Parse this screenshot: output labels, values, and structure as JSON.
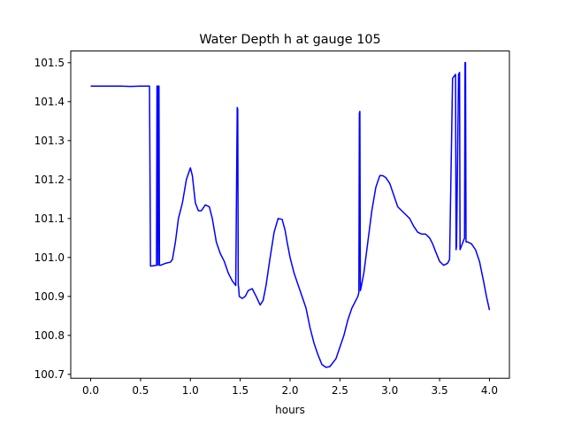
{
  "chart_data": {
    "type": "line",
    "title": "Water Depth h at gauge 105",
    "xlabel": "hours",
    "ylabel": "",
    "xlim": [
      -0.2,
      4.2
    ],
    "ylim": [
      100.69,
      101.53
    ],
    "xticks": [
      0.0,
      0.5,
      1.0,
      1.5,
      2.0,
      2.5,
      3.0,
      3.5,
      4.0
    ],
    "xtick_labels": [
      "0.0",
      "0.5",
      "1.0",
      "1.5",
      "2.0",
      "2.5",
      "3.0",
      "3.5",
      "4.0"
    ],
    "yticks": [
      100.7,
      100.8,
      100.9,
      101.0,
      101.1,
      101.2,
      101.3,
      101.4,
      101.5
    ],
    "ytick_labels": [
      "100.7",
      "100.8",
      "100.9",
      "101.0",
      "101.1",
      "101.2",
      "101.3",
      "101.4",
      "101.5"
    ],
    "grid": false,
    "series": [
      {
        "color": "#0000ff",
        "x": [
          0.0,
          0.1,
          0.2,
          0.3,
          0.4,
          0.5,
          0.59,
          0.6,
          0.605,
          0.66,
          0.665,
          0.67,
          0.675,
          0.68,
          0.685,
          0.69,
          0.7,
          0.75,
          0.8,
          0.82,
          0.85,
          0.88,
          0.92,
          0.96,
          1.0,
          1.02,
          1.05,
          1.08,
          1.11,
          1.15,
          1.19,
          1.22,
          1.26,
          1.3,
          1.34,
          1.38,
          1.42,
          1.455,
          1.47,
          1.475,
          1.48,
          1.485,
          1.49,
          1.52,
          1.55,
          1.58,
          1.62,
          1.66,
          1.7,
          1.73,
          1.76,
          1.8,
          1.84,
          1.88,
          1.92,
          1.95,
          1.97,
          2.0,
          2.04,
          2.08,
          2.12,
          2.16,
          2.2,
          2.24,
          2.28,
          2.32,
          2.36,
          2.4,
          2.43,
          2.46,
          2.5,
          2.54,
          2.58,
          2.62,
          2.66,
          2.68,
          2.69,
          2.695,
          2.7,
          2.705,
          2.71,
          2.74,
          2.78,
          2.82,
          2.86,
          2.9,
          2.93,
          2.96,
          3.0,
          3.04,
          3.08,
          3.12,
          3.16,
          3.2,
          3.24,
          3.28,
          3.32,
          3.36,
          3.4,
          3.43,
          3.46,
          3.5,
          3.54,
          3.58,
          3.6,
          3.63,
          3.66,
          3.665,
          3.67,
          3.69,
          3.7,
          3.705,
          3.72,
          3.75,
          3.755,
          3.76,
          3.765,
          3.78,
          3.82,
          3.86,
          3.9,
          3.94,
          3.97,
          4.0
        ],
        "y": [
          101.44,
          101.44,
          101.44,
          101.44,
          101.439,
          101.44,
          101.44,
          100.978,
          100.978,
          100.98,
          101.44,
          101.44,
          100.98,
          101.44,
          101.44,
          100.98,
          100.98,
          100.985,
          100.988,
          100.995,
          101.04,
          101.1,
          101.14,
          101.2,
          101.23,
          101.21,
          101.14,
          101.12,
          101.12,
          101.135,
          101.13,
          101.1,
          101.04,
          101.01,
          100.99,
          100.96,
          100.94,
          100.928,
          101.385,
          101.38,
          100.93,
          100.92,
          100.9,
          100.895,
          100.9,
          100.915,
          100.92,
          100.9,
          100.878,
          100.89,
          100.93,
          101.0,
          101.065,
          101.1,
          101.098,
          101.07,
          101.04,
          101.0,
          100.96,
          100.93,
          100.9,
          100.87,
          100.82,
          100.78,
          100.75,
          100.725,
          100.718,
          100.72,
          100.73,
          100.74,
          100.77,
          100.8,
          100.84,
          100.87,
          100.89,
          100.9,
          100.91,
          101.37,
          101.375,
          100.915,
          100.92,
          100.96,
          101.04,
          101.12,
          101.18,
          101.21,
          101.21,
          101.205,
          101.19,
          101.16,
          101.13,
          101.12,
          101.11,
          101.1,
          101.08,
          101.065,
          101.06,
          101.06,
          101.05,
          101.035,
          101.015,
          100.99,
          100.98,
          100.985,
          100.995,
          101.46,
          101.47,
          101.02,
          101.03,
          101.47,
          101.475,
          101.02,
          101.03,
          101.05,
          101.5,
          101.5,
          101.04,
          101.04,
          101.035,
          101.02,
          100.99,
          100.94,
          100.9,
          100.865
        ]
      }
    ]
  }
}
